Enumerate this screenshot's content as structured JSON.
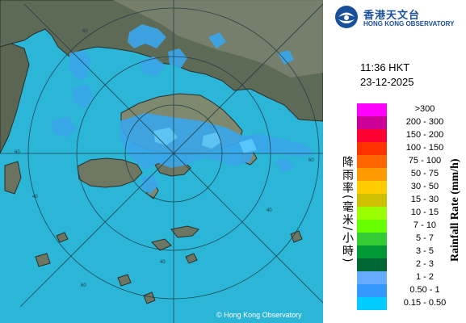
{
  "header": {
    "org_name_cn": "香港天文台",
    "org_name_en": "HONG KONG OBSERVATORY",
    "time": "11:36 HKT",
    "date": "23-12-2025"
  },
  "map": {
    "copyright": "© Hong Kong Observatory",
    "range_ring_labels": [
      "60",
      "60",
      "60",
      "60",
      "40",
      "40",
      "40"
    ],
    "colors": {
      "sea": "#2bb5d6",
      "land": "#5e6a55",
      "rain_light": "#3aa0e8",
      "rain_core": "#46c8f0"
    }
  },
  "legend": {
    "title_cn": "降雨率(毫米/小時)",
    "title_en": "Rainfall Rate (mm/h)",
    "items": [
      {
        "label": ">300",
        "color": "#ff00ff"
      },
      {
        "label": "200 - 300",
        "color": "#cc0099"
      },
      {
        "label": "150 - 200",
        "color": "#ff0033"
      },
      {
        "label": "100 - 150",
        "color": "#ff3300"
      },
      {
        "label": "75 - 100",
        "color": "#ff6600"
      },
      {
        "label": "50 - 75",
        "color": "#ff9900"
      },
      {
        "label": "30 - 50",
        "color": "#ffcc00"
      },
      {
        "label": "15 - 30",
        "color": "#ccc000"
      },
      {
        "label": "10 - 15",
        "color": "#99ff00"
      },
      {
        "label": "7 - 10",
        "color": "#66ff00"
      },
      {
        "label": "5 - 7",
        "color": "#33cc33"
      },
      {
        "label": "3 - 5",
        "color": "#009933"
      },
      {
        "label": "2 - 3",
        "color": "#006633"
      },
      {
        "label": "1 - 2",
        "color": "#66aaff"
      },
      {
        "label": "0.50 - 1",
        "color": "#3399ff"
      },
      {
        "label": "0.15 - 0.50",
        "color": "#00ccff"
      }
    ]
  }
}
